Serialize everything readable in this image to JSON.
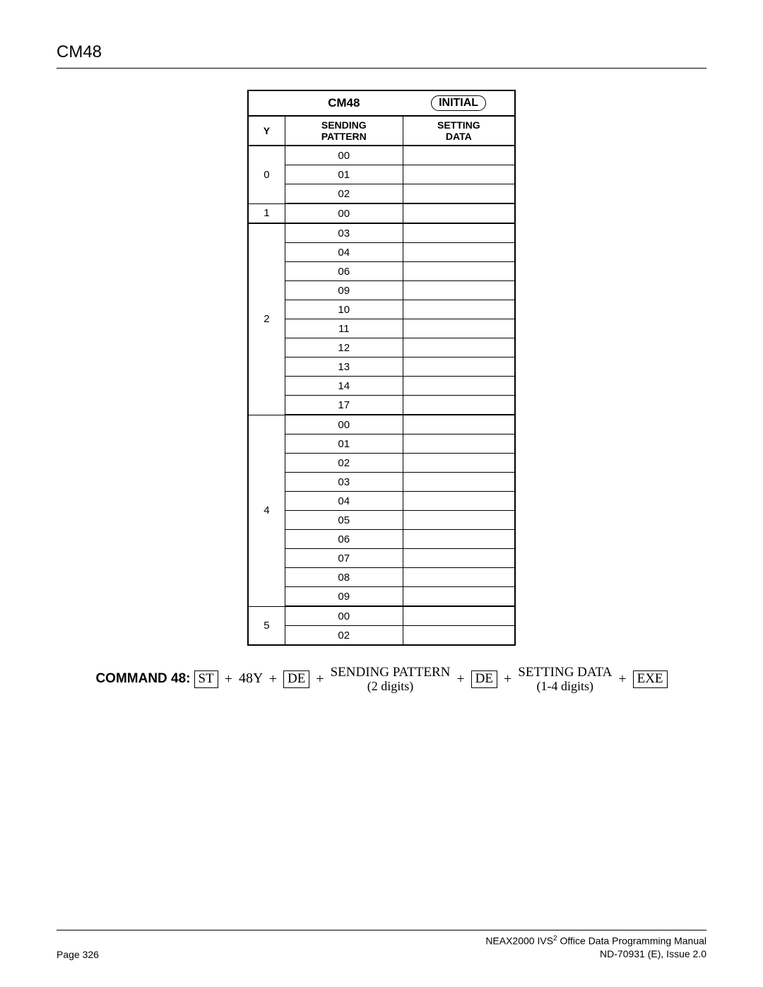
{
  "header": {
    "title": "CM48"
  },
  "table": {
    "title": "CM48",
    "badge": "INITIAL",
    "columns": {
      "y": "Y",
      "sending": "SENDING\nPATTERN",
      "setting": "SETTING\nDATA"
    },
    "groups": [
      {
        "y": "0",
        "patterns": [
          "00",
          "01",
          "02"
        ]
      },
      {
        "y": "1",
        "patterns": [
          "00"
        ]
      },
      {
        "y": "2",
        "patterns": [
          "03",
          "04",
          "06",
          "09",
          "10",
          "11",
          "12",
          "13",
          "14",
          "17"
        ]
      },
      {
        "y": "4",
        "patterns": [
          "00",
          "01",
          "02",
          "03",
          "04",
          "05",
          "06",
          "07",
          "08",
          "09"
        ]
      },
      {
        "y": "5",
        "patterns": [
          "00",
          "02"
        ]
      }
    ]
  },
  "command": {
    "label": "COMMAND 48:",
    "keys": {
      "st": "ST",
      "de": "DE",
      "exe": "EXE"
    },
    "y48": "48Y",
    "sending": {
      "top": "SENDING PATTERN",
      "bot": "(2 digits)"
    },
    "setting": {
      "top": "SETTING DATA",
      "bot": "(1-4 digits)"
    }
  },
  "footer": {
    "page": "Page 326",
    "manual_line1_a": "NEAX2000 IVS",
    "manual_line1_sup": "2",
    "manual_line1_b": " Office Data Programming Manual",
    "manual_line2": "ND-70931 (E), Issue 2.0"
  }
}
